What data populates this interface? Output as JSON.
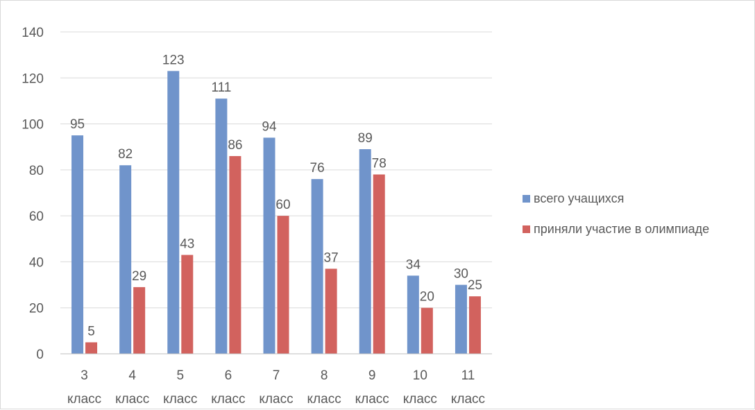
{
  "chart_data": {
    "type": "bar",
    "title": "",
    "xlabel": "",
    "ylabel": "",
    "categories": [
      [
        "3",
        "класс"
      ],
      [
        "4",
        "класс"
      ],
      [
        "5",
        "класс"
      ],
      [
        "6",
        "класс"
      ],
      [
        "7",
        "класс"
      ],
      [
        "8",
        "класс"
      ],
      [
        "9",
        "класс"
      ],
      [
        "10",
        "класс"
      ],
      [
        "11",
        "класс"
      ]
    ],
    "series": [
      {
        "name": "всего учащихся",
        "color": "#7094cb",
        "values": [
          95,
          82,
          123,
          111,
          94,
          76,
          89,
          34,
          30
        ]
      },
      {
        "name": "приняли участие в олимпиаде",
        "color": "#d2625e",
        "values": [
          5,
          29,
          43,
          86,
          60,
          37,
          78,
          20,
          25
        ]
      }
    ],
    "ylim": [
      0,
      140
    ],
    "yticks": [
      0,
      20,
      40,
      60,
      80,
      100,
      120,
      140
    ],
    "grid": true,
    "legend_position": "right",
    "data_labels": true
  }
}
